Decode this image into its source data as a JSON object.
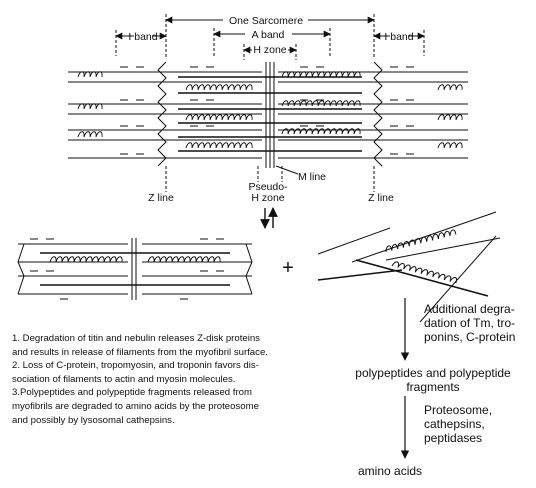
{
  "labels": {
    "one_sarcomere": "One Sarcomere",
    "i_band_left": "I band",
    "a_band": "A band",
    "h_zone": "H zone",
    "i_band_right": "I band",
    "m_line": "M line",
    "pseudo_h_zone_line1": "Pseudo-",
    "pseudo_h_zone_line2": "H zone",
    "z_line_left": "Z line",
    "z_line_right": "Z line",
    "plus": "+"
  },
  "flow": {
    "additional_degradation": "Additional degra-dation of Tm, tro-ponins, C-protein",
    "polypeptides": "polypeptides and polypeptide fragments",
    "enzymes": "Proteosome, cathepsins, peptidases",
    "amino_acids": "amino acids"
  },
  "notes": [
    "1. Degradation of titin and nebulin releases Z-disk proteins and results in release of filaments from the myofibril surface.",
    "2. Loss of C-protein, tropomyosin, and troponin favors dis-sociation of filaments to actin and myosin molecules.",
    "3.Polypeptides and polypeptide fragments released from myofibrils are degraded to amino acids by the proteosome and possibly by lysosomal cathepsins."
  ]
}
